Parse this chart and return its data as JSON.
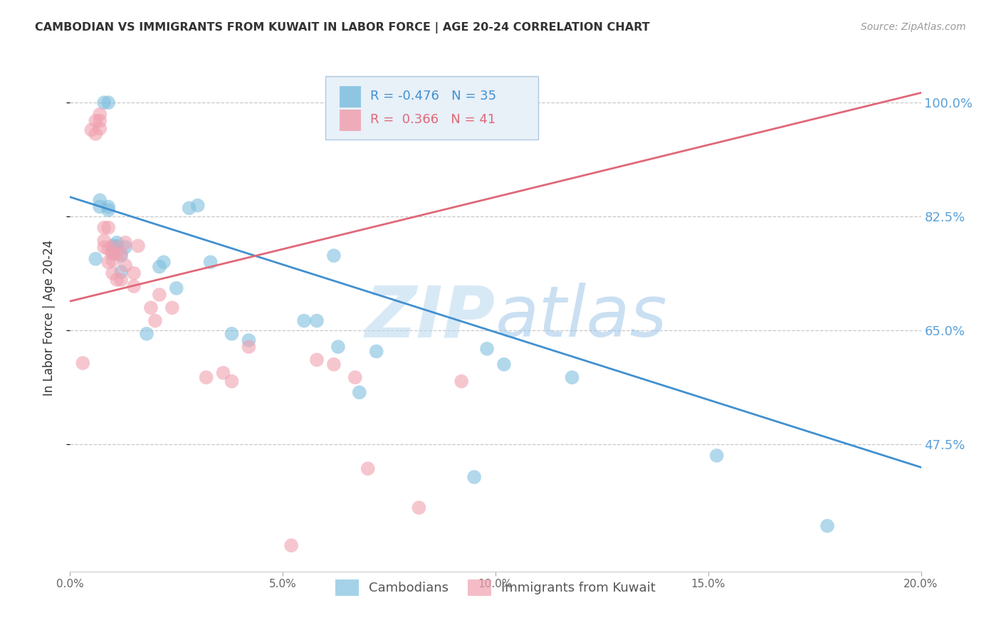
{
  "title": "CAMBODIAN VS IMMIGRANTS FROM KUWAIT IN LABOR FORCE | AGE 20-24 CORRELATION CHART",
  "source": "Source: ZipAtlas.com",
  "ylabel": "In Labor Force | Age 20-24",
  "watermark_zip": "ZIP",
  "watermark_atlas": "atlas",
  "xlim": [
    0.0,
    0.2
  ],
  "ylim": [
    0.28,
    1.06
  ],
  "yticks": [
    1.0,
    0.825,
    0.65,
    0.475
  ],
  "ytick_labels": [
    "100.0%",
    "82.5%",
    "65.0%",
    "47.5%"
  ],
  "xticks": [
    0.0,
    0.05,
    0.1,
    0.15,
    0.2
  ],
  "xtick_labels": [
    "0.0%",
    "5.0%",
    "10.0%",
    "15.0%",
    "20.0%"
  ],
  "legend_R_blue": "-0.476",
  "legend_N_blue": "35",
  "legend_R_pink": "0.366",
  "legend_N_pink": "41",
  "blue_color": "#7fbfdf",
  "pink_color": "#f0a0b0",
  "blue_line_color": "#4090d0",
  "pink_line_color": "#e06878",
  "right_axis_color": "#5aa0d8",
  "blue_scatter_x": [
    0.006,
    0.007,
    0.007,
    0.008,
    0.009,
    0.009,
    0.009,
    0.01,
    0.01,
    0.011,
    0.011,
    0.012,
    0.012,
    0.013,
    0.018,
    0.021,
    0.022,
    0.025,
    0.028,
    0.03,
    0.033,
    0.038,
    0.042,
    0.055,
    0.058,
    0.062,
    0.063,
    0.068,
    0.072,
    0.095,
    0.098,
    0.102,
    0.118,
    0.152,
    0.178
  ],
  "blue_scatter_y": [
    0.76,
    0.84,
    0.85,
    1.0,
    0.835,
    0.84,
    1.0,
    0.77,
    0.78,
    0.78,
    0.785,
    0.74,
    0.765,
    0.778,
    0.645,
    0.748,
    0.755,
    0.715,
    0.838,
    0.842,
    0.755,
    0.645,
    0.635,
    0.665,
    0.665,
    0.765,
    0.625,
    0.555,
    0.618,
    0.425,
    0.622,
    0.598,
    0.578,
    0.458,
    0.35
  ],
  "pink_scatter_x": [
    0.003,
    0.005,
    0.006,
    0.006,
    0.007,
    0.007,
    0.007,
    0.008,
    0.008,
    0.008,
    0.009,
    0.009,
    0.009,
    0.01,
    0.01,
    0.01,
    0.01,
    0.011,
    0.011,
    0.012,
    0.012,
    0.013,
    0.013,
    0.015,
    0.015,
    0.016,
    0.019,
    0.02,
    0.021,
    0.024,
    0.032,
    0.036,
    0.042,
    0.052,
    0.058,
    0.062,
    0.067,
    0.07,
    0.082,
    0.092,
    0.038
  ],
  "pink_scatter_y": [
    0.6,
    0.958,
    0.952,
    0.972,
    0.96,
    0.972,
    0.982,
    0.778,
    0.788,
    0.808,
    0.755,
    0.775,
    0.808,
    0.738,
    0.758,
    0.768,
    0.778,
    0.728,
    0.768,
    0.728,
    0.768,
    0.75,
    0.785,
    0.718,
    0.738,
    0.78,
    0.685,
    0.665,
    0.705,
    0.685,
    0.578,
    0.585,
    0.625,
    0.32,
    0.605,
    0.598,
    0.578,
    0.438,
    0.378,
    0.572,
    0.572
  ],
  "blue_trend_x": [
    0.0,
    0.2
  ],
  "blue_trend_y": [
    0.855,
    0.44
  ],
  "pink_trend_x": [
    0.0,
    0.2
  ],
  "pink_trend_y": [
    0.695,
    1.015
  ],
  "background_color": "#ffffff",
  "grid_color": "#c8c8c8",
  "legend_box_color": "#e8f0f8",
  "legend_border_color": "#b0c8e0"
}
